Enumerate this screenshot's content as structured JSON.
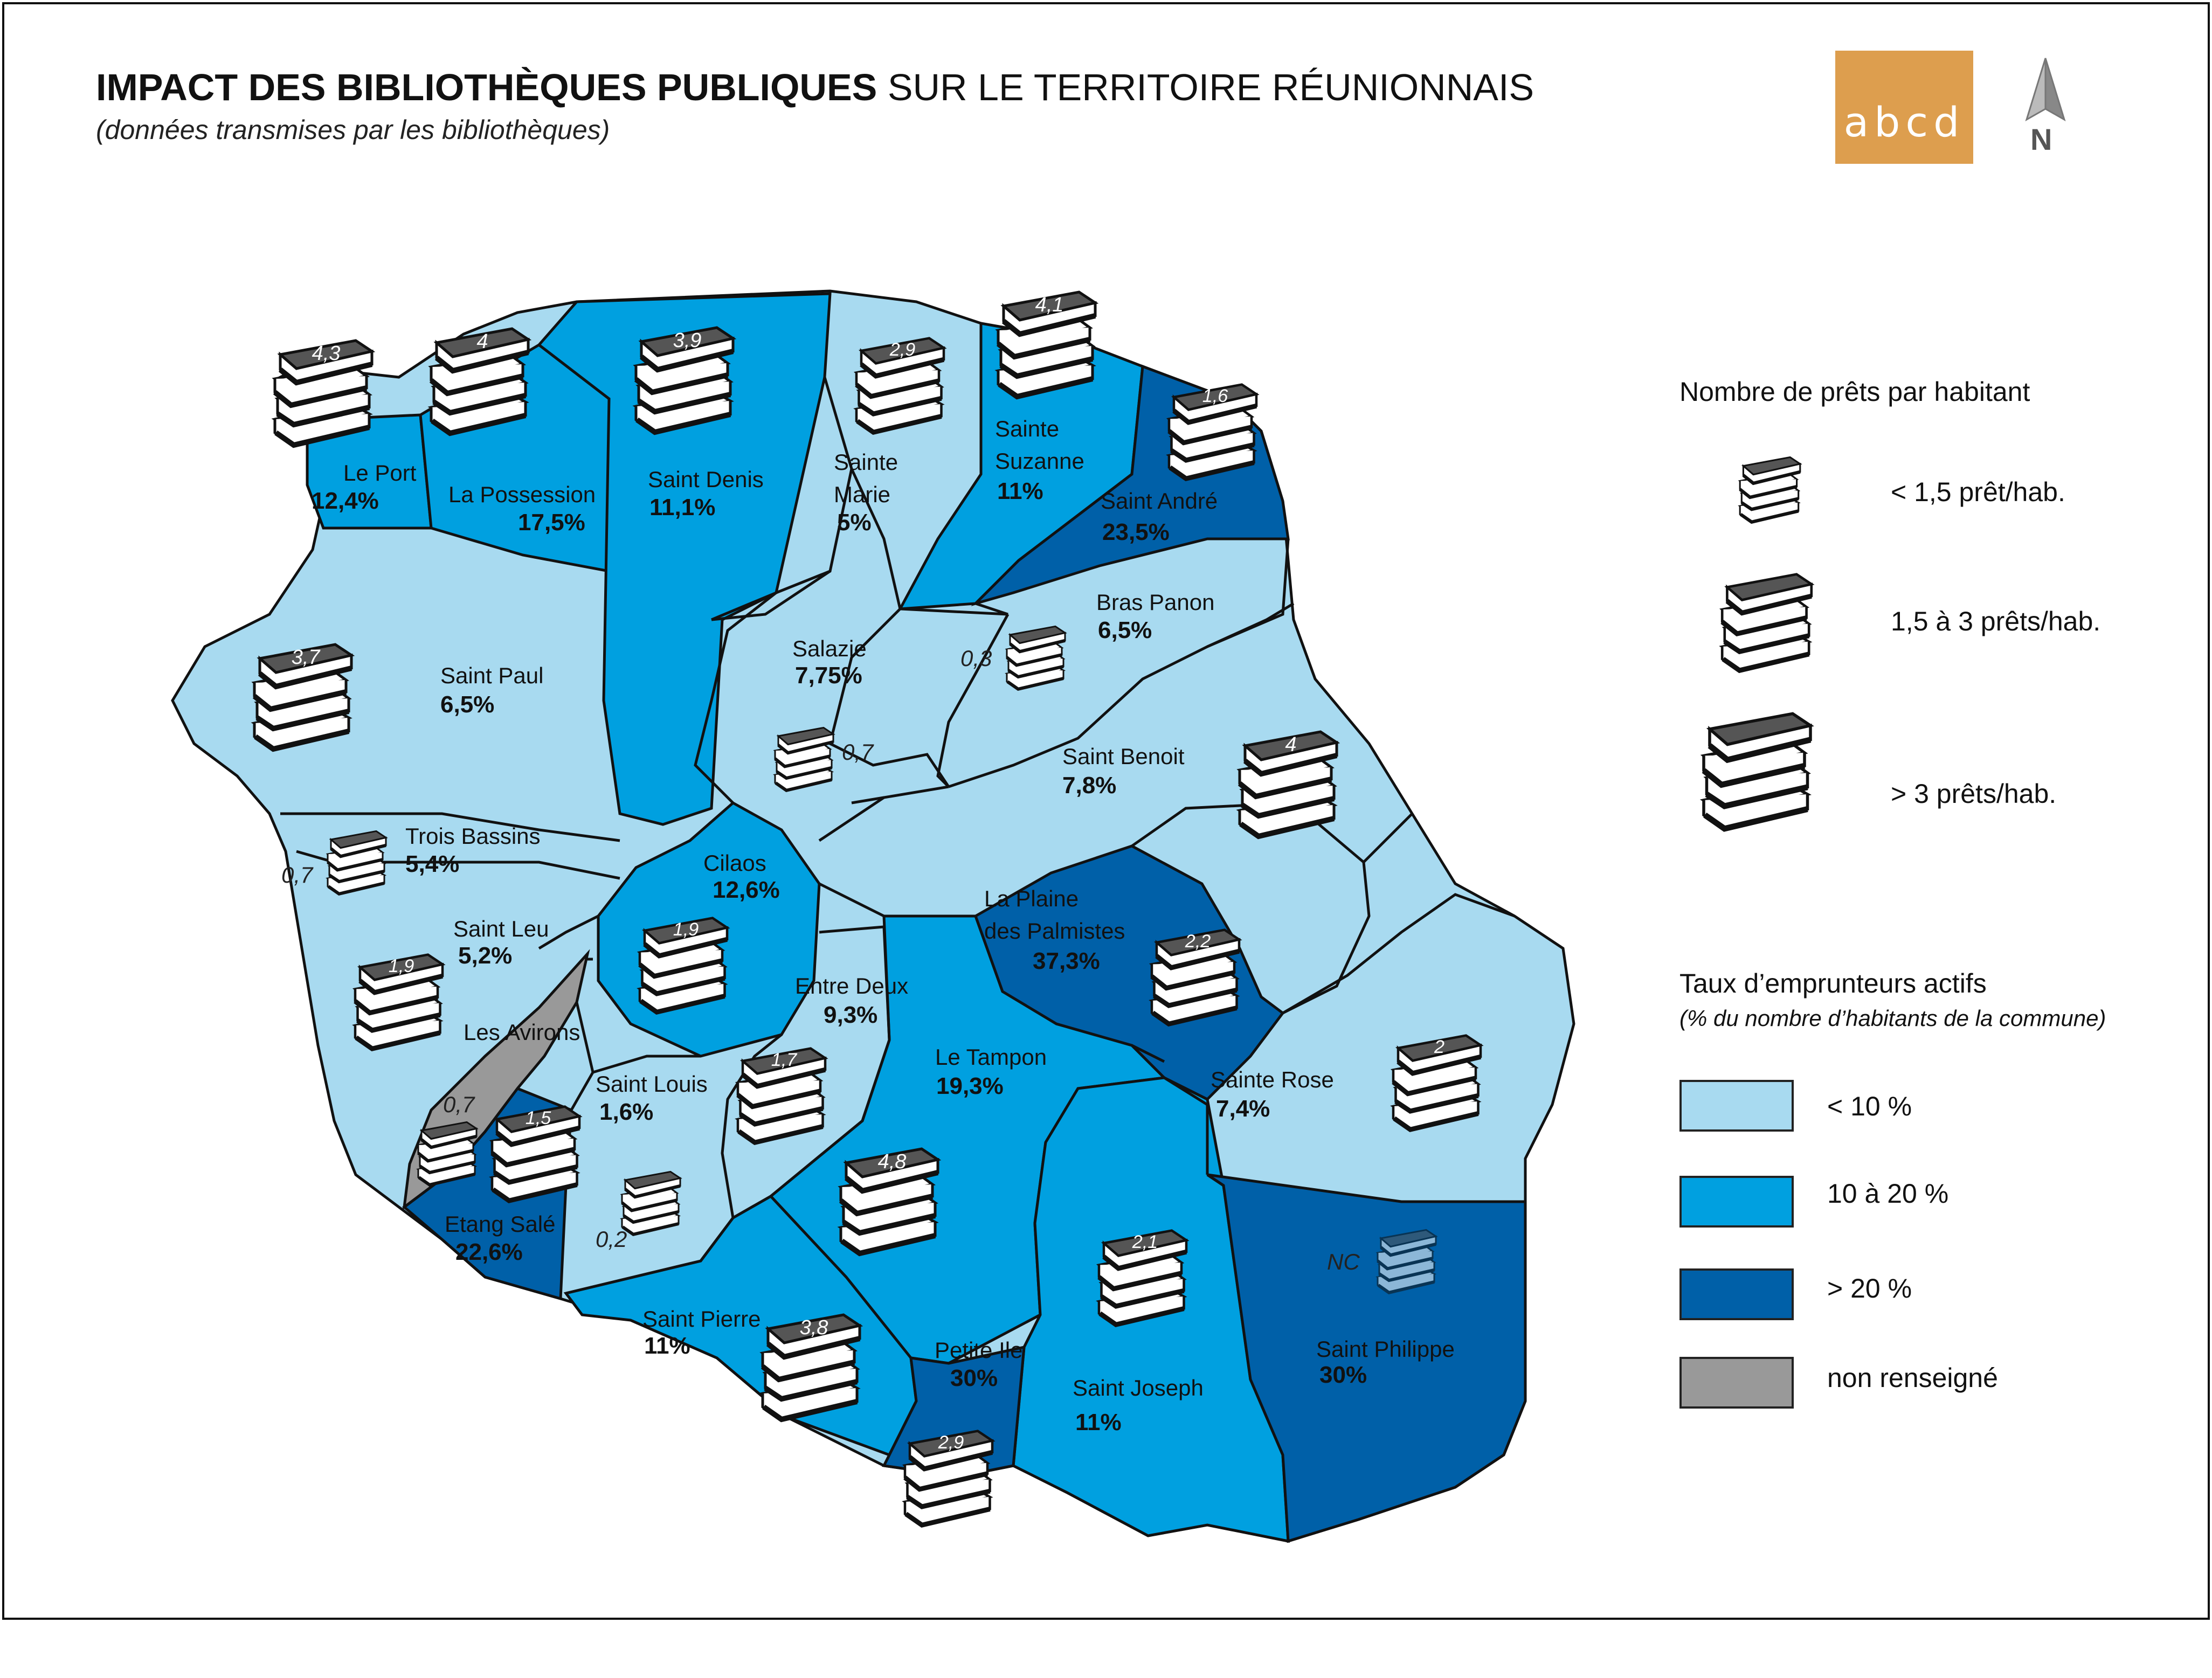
{
  "title": {
    "bold": "IMPACT DES BIBLIOTHÈQUES PUBLIQUES",
    "regular": "SUR LE TERRITOIRE RÉUNIONNAIS",
    "subtitle": "(données transmises par les bibliothèques)"
  },
  "logo": {
    "text": "abcd"
  },
  "north": {
    "label": "N"
  },
  "colors": {
    "light": "#a8daf0",
    "medium": "#00a0e0",
    "dark": "#0060a8",
    "none": "#999999",
    "book": "#555555",
    "logo": "#dd9e4e"
  },
  "legend": {
    "loans_title": "Nombre de prêts par habitant",
    "loans": [
      {
        "label": "< 1,5 prêt/hab.",
        "size": "small"
      },
      {
        "label": "1,5 à 3 prêts/hab.",
        "size": "medium"
      },
      {
        "label": "> 3 prêts/hab.",
        "size": "large"
      }
    ],
    "rate_title": "Taux d’emprunteurs actifs",
    "rate_subtitle": "(% du nombre d’habitants de la commune)",
    "rates": [
      {
        "label": "< 10 %",
        "color": "#a8daf0"
      },
      {
        "label": "10 à 20 %",
        "color": "#00a0e0"
      },
      {
        "label": "> 20 %",
        "color": "#0060a8"
      },
      {
        "label": "non renseigné",
        "color": "#999999"
      }
    ]
  },
  "communes": [
    {
      "name": "Le Port",
      "rate": "12,4%",
      "loans": "4,3"
    },
    {
      "name": "La Possession",
      "rate": "17,5%",
      "loans": "4"
    },
    {
      "name": "Saint Denis",
      "rate": "11,1%",
      "loans": "3,9"
    },
    {
      "name": "Sainte Marie",
      "rate": "5%",
      "loans": "2,9"
    },
    {
      "name": "Sainte Suzanne",
      "rate": "11%",
      "loans": "4,1"
    },
    {
      "name": "Saint André",
      "rate": "23,5%",
      "loans": "1,6"
    },
    {
      "name": "Bras Panon",
      "rate": "6,5%",
      "loans": "0,3"
    },
    {
      "name": "Salazie",
      "rate": "7,75%",
      "loans": "0,7"
    },
    {
      "name": "Saint Paul",
      "rate": "6,5%",
      "loans": "3,7"
    },
    {
      "name": "Saint Benoit",
      "rate": "7,8%",
      "loans": "4"
    },
    {
      "name": "Trois Bassins",
      "rate": "5,4%",
      "loans": "0,7"
    },
    {
      "name": "Cilaos",
      "rate": "12,6%",
      "loans": "1,9"
    },
    {
      "name": "La Plaine des Palmistes",
      "rate": "37,3%",
      "loans": "2,2"
    },
    {
      "name": "Saint Leu",
      "rate": "5,2%",
      "loans": "1,9"
    },
    {
      "name": "Entre Deux",
      "rate": "9,3%",
      "loans": "1,7"
    },
    {
      "name": "Les Avirons",
      "rate": "",
      "loans": "0,7"
    },
    {
      "name": "Le Tampon",
      "rate": "19,3%",
      "loans": "4,8"
    },
    {
      "name": "Sainte Rose",
      "rate": "7,4%",
      "loans": "2"
    },
    {
      "name": "Saint Louis",
      "rate": "1,6%",
      "loans": "0,2"
    },
    {
      "name": "Etang Salé",
      "rate": "22,6%",
      "loans": "1,5"
    },
    {
      "name": "Saint Pierre",
      "rate": "11%",
      "loans": "3,8"
    },
    {
      "name": "Petite Ile",
      "rate": "30%",
      "loans": "2,9"
    },
    {
      "name": "Saint Joseph",
      "rate": "11%",
      "loans": "2,1"
    },
    {
      "name": "Saint Philippe",
      "rate": "30%",
      "loans": "NC"
    }
  ],
  "labels": {
    "le_port": "Le Port",
    "la_possession": "La Possession",
    "saint_denis": "Saint Denis",
    "sainte_marie_1": "Sainte",
    "sainte_marie_2": "Marie",
    "sainte_suzanne_1": "Sainte",
    "sainte_suzanne_2": "Suzanne",
    "saint_andre": "Saint André",
    "bras_panon": "Bras Panon",
    "salazie": "Salazie",
    "saint_paul": "Saint Paul",
    "saint_benoit": "Saint Benoit",
    "trois_bassins": "Trois Bassins",
    "cilaos": "Cilaos",
    "plaine_1": "La Plaine",
    "plaine_2": "des Palmistes",
    "saint_leu": "Saint Leu",
    "entre_deux": "Entre Deux",
    "les_avirons": "Les Avirons",
    "le_tampon": "Le Tampon",
    "sainte_rose": "Sainte Rose",
    "saint_louis": "Saint Louis",
    "etang_sale": "Etang Salé",
    "saint_pierre": "Saint Pierre",
    "petite_ile": "Petite Ile",
    "saint_joseph": "Saint Joseph",
    "saint_philippe": "Saint Philippe"
  }
}
